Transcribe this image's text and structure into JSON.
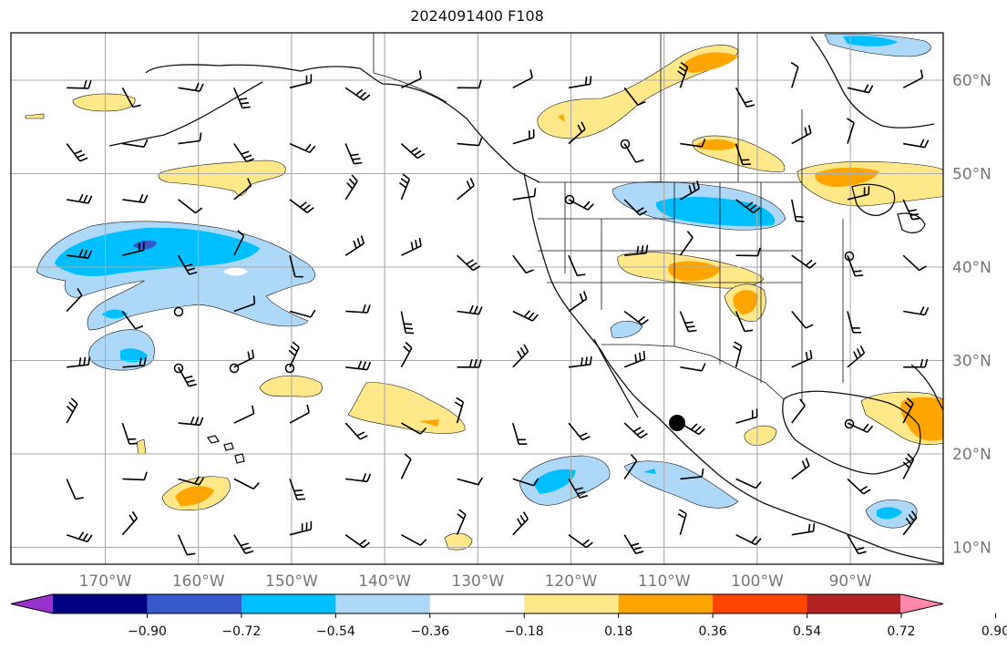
{
  "title": "2024091400 F108",
  "map": {
    "projection": "PlateCarree",
    "lon_range": [
      -180,
      -80
    ],
    "lat_range": [
      8,
      65
    ],
    "gridlines": true,
    "lat_ticks": [
      {
        "value": 60,
        "label": "60°N"
      },
      {
        "value": 50,
        "label": "50°N"
      },
      {
        "value": 40,
        "label": "40°N"
      },
      {
        "value": 30,
        "label": "30°N"
      },
      {
        "value": 20,
        "label": "20°N"
      },
      {
        "value": 10,
        "label": "10°N"
      }
    ],
    "lon_ticks": [
      {
        "value": -170,
        "label": "170°W"
      },
      {
        "value": -160,
        "label": "160°W"
      },
      {
        "value": -150,
        "label": "150°W"
      },
      {
        "value": -140,
        "label": "140°W"
      },
      {
        "value": -130,
        "label": "130°W"
      },
      {
        "value": -120,
        "label": "120°W"
      },
      {
        "value": -110,
        "label": "110°W"
      },
      {
        "value": -100,
        "label": "100°W"
      },
      {
        "value": -90,
        "label": "90°W"
      }
    ]
  },
  "colorbar": {
    "colors": [
      "#9932cc",
      "#000080",
      "#3658c8",
      "#00bfff",
      "#add8f8",
      "#ffffff",
      "#ffe88a",
      "#ffa500",
      "#ff4500",
      "#b22222",
      "#ff88aa"
    ],
    "extend": "both",
    "tick_labels": [
      "−0.90",
      "−0.72",
      "−0.54",
      "−0.36",
      "−0.18",
      "0.18",
      "0.36",
      "0.54",
      "0.72",
      "0.90"
    ]
  }
}
